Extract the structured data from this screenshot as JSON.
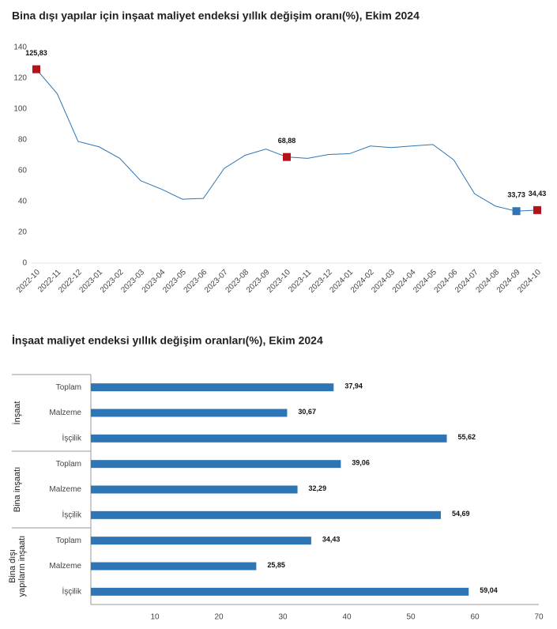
{
  "chart_data": [
    {
      "type": "line",
      "title": "Bina dışı yapılar için inşaat maliyet endeksi yıllık değişim oranı(%), Ekim 2024",
      "categories": [
        "2022-10",
        "2022-11",
        "2022-12",
        "2023-01",
        "2023-02",
        "2023-03",
        "2023-04",
        "2023-05",
        "2023-06",
        "2023-07",
        "2023-08",
        "2023-09",
        "2023-10",
        "2023-11",
        "2023-12",
        "2024-01",
        "2024-02",
        "2024-03",
        "2024-04",
        "2024-05",
        "2024-06",
        "2024-07",
        "2024-08",
        "2024-09",
        "2024-10"
      ],
      "values": [
        125.83,
        110,
        79,
        75.5,
        68,
        53.5,
        48,
        41.5,
        42,
        61.5,
        70,
        74,
        68.88,
        68,
        70.5,
        71,
        76,
        75,
        76,
        77,
        67,
        45,
        37,
        33.73,
        34.43
      ],
      "value_labels": [
        "125,83",
        null,
        null,
        null,
        null,
        null,
        null,
        null,
        null,
        null,
        null,
        null,
        "68,88",
        null,
        null,
        null,
        null,
        null,
        null,
        null,
        null,
        null,
        null,
        "33,73",
        "34,43"
      ],
      "marker_colors": [
        "#b5121b",
        null,
        null,
        null,
        null,
        null,
        null,
        null,
        null,
        null,
        null,
        null,
        "#b5121b",
        null,
        null,
        null,
        null,
        null,
        null,
        null,
        null,
        null,
        null,
        "#2e75b6",
        "#b5121b"
      ],
      "color": "#2e75b6",
      "ylim": [
        0,
        140
      ],
      "yticks": [
        0,
        20,
        40,
        60,
        80,
        100,
        120,
        140
      ]
    },
    {
      "type": "bar",
      "title": "İnşaat maliyet endeksi yıllık değişim oranları(%), Ekim 2024",
      "color": "#2e75b6",
      "groups": [
        {
          "label": [
            "İnşaat"
          ],
          "categories": [
            "Toplam",
            "Malzeme",
            "İşçilik"
          ],
          "values": [
            37.94,
            30.67,
            55.62
          ],
          "value_labels": [
            "37,94",
            "30,67",
            "55,62"
          ]
        },
        {
          "label": [
            "Bina inşaatı"
          ],
          "categories": [
            "Toplam",
            "Malzeme",
            "İşçilik"
          ],
          "values": [
            39.06,
            32.29,
            54.69
          ],
          "value_labels": [
            "39,06",
            "32,29",
            "54,69"
          ]
        },
        {
          "label": [
            "Bina dışı",
            "yapıların inşaatı"
          ],
          "categories": [
            "Toplam",
            "Malzeme",
            "İşçilik"
          ],
          "values": [
            34.43,
            25.85,
            59.04
          ],
          "value_labels": [
            "34,43",
            "25,85",
            "59,04"
          ]
        }
      ],
      "xlim": [
        0,
        70
      ],
      "xticks": [
        10,
        20,
        30,
        40,
        50,
        60,
        70
      ]
    }
  ]
}
